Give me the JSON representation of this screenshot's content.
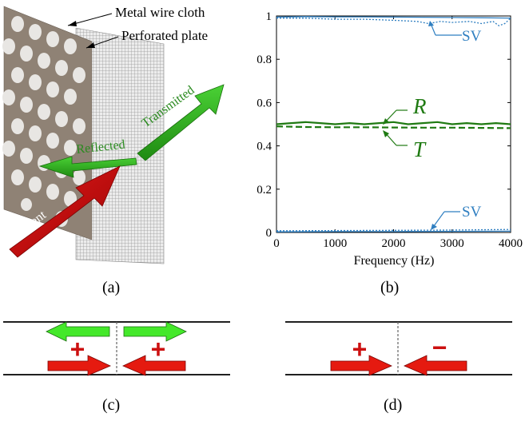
{
  "panel_a": {
    "label": "(a)",
    "callouts": [
      "Metal wire cloth",
      "Perforated plate"
    ],
    "arrow_labels": {
      "incident": "Incident",
      "reflected": "Reflected",
      "transmitted": "Transmitted"
    }
  },
  "panel_b": {
    "label": "(b)"
  },
  "panel_c": {
    "label": "(c)",
    "signs": [
      "+",
      "+"
    ]
  },
  "panel_d": {
    "label": "(d)",
    "signs": [
      "+",
      "−"
    ]
  },
  "colors": {
    "green": "#2a8a1f",
    "red": "#cc1010",
    "sv_blue": "#2f7fc1",
    "plate": "#8f8275",
    "light_green": "#36dd1e"
  },
  "chart_data": {
    "type": "line",
    "xlabel": "Frequency (Hz)",
    "ylabel": "",
    "xlim": [
      0,
      4000
    ],
    "ylim": [
      0,
      1
    ],
    "x_ticks": [
      0,
      1000,
      2000,
      3000,
      4000
    ],
    "y_ticks": [
      0,
      0.2,
      0.4,
      0.6,
      0.8,
      1
    ],
    "y_tick_labels": [
      "0",
      "0.2",
      "0.4",
      "0.6",
      "0.8",
      "1"
    ],
    "grid": false,
    "series": [
      {
        "name": "SV",
        "style": "solid",
        "color": "#2f7fc1",
        "x": [
          0,
          500,
          1000,
          1500,
          2000,
          2500,
          3000,
          3500,
          4000
        ],
        "y": [
          0.995,
          0.997,
          0.996,
          0.996,
          0.995,
          0.994,
          0.993,
          0.992,
          0.99
        ]
      },
      {
        "name": "SV",
        "style": "dotted",
        "color": "#2f7fc1",
        "x": [
          0,
          500,
          1000,
          1500,
          2000,
          2400,
          2600,
          2800,
          3000,
          3300,
          3500,
          3700,
          3800,
          3900,
          4000
        ],
        "y": [
          0.99,
          0.99,
          0.985,
          0.985,
          0.98,
          0.975,
          0.965,
          0.975,
          0.97,
          0.975,
          0.965,
          0.975,
          0.955,
          0.965,
          0.99
        ]
      },
      {
        "name": "R",
        "style": "solid",
        "color": "#1f7a12",
        "x": [
          0,
          250,
          500,
          750,
          1000,
          1250,
          1500,
          1750,
          2000,
          2250,
          2500,
          2750,
          3000,
          3250,
          3500,
          3750,
          4000
        ],
        "y": [
          0.5,
          0.505,
          0.51,
          0.505,
          0.5,
          0.505,
          0.5,
          0.505,
          0.51,
          0.5,
          0.505,
          0.51,
          0.5,
          0.505,
          0.5,
          0.505,
          0.5
        ]
      },
      {
        "name": "T",
        "style": "dashed",
        "color": "#1f7a12",
        "x": [
          0,
          500,
          1000,
          1500,
          2000,
          2500,
          3000,
          3500,
          4000
        ],
        "y": [
          0.49,
          0.487,
          0.486,
          0.486,
          0.485,
          0.484,
          0.484,
          0.483,
          0.482
        ]
      },
      {
        "name": "SV",
        "style": "solid",
        "color": "#2f7fc1",
        "x": [
          0,
          1000,
          2000,
          3000,
          4000
        ],
        "y": [
          0.003,
          0.004,
          0.004,
          0.005,
          0.006
        ]
      },
      {
        "name": "SV",
        "style": "dotted",
        "color": "#2f7fc1",
        "x": [
          0,
          1000,
          2000,
          3000,
          4000
        ],
        "y": [
          0.008,
          0.009,
          0.01,
          0.011,
          0.014
        ]
      }
    ],
    "annotations": [
      "SV",
      "R",
      "T",
      "SV"
    ]
  }
}
